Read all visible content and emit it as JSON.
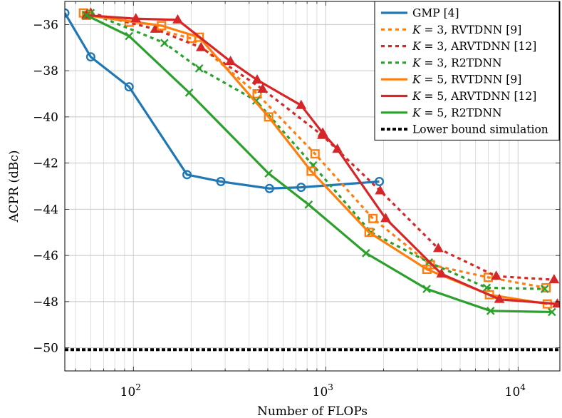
{
  "chart_data": {
    "type": "line",
    "title": "",
    "xlabel": "Number of FLOPs",
    "ylabel": "ACPR (dBc)",
    "xscale": "log",
    "xlim": [
      44,
      16500
    ],
    "ylim": [
      -51,
      -35
    ],
    "xticks": [
      {
        "value": 100,
        "base": "10",
        "exp": "2"
      },
      {
        "value": 1000,
        "base": "10",
        "exp": "3"
      },
      {
        "value": 10000,
        "base": "10",
        "exp": "4"
      }
    ],
    "yticks": [
      {
        "value": -36,
        "label": "−36"
      },
      {
        "value": -38,
        "label": "−38"
      },
      {
        "value": -40,
        "label": "−40"
      },
      {
        "value": -42,
        "label": "−42"
      },
      {
        "value": -44,
        "label": "−44"
      },
      {
        "value": -46,
        "label": "−46"
      },
      {
        "value": -48,
        "label": "−48"
      },
      {
        "value": -50,
        "label": "−50"
      }
    ],
    "grid": true,
    "legend_position": "top-right",
    "series": [
      {
        "name": "GMP [4]",
        "legend_plain": "GMP [4]",
        "color": "#1f77b4",
        "dash": "solid",
        "marker": "circle",
        "x": [
          44,
          60,
          95,
          190,
          285,
          510,
          745,
          1900
        ],
        "y": [
          -35.5,
          -37.4,
          -38.7,
          -42.5,
          -42.8,
          -43.1,
          -43.05,
          -42.8
        ]
      },
      {
        "name": "K = 3, RVTDNN [9]",
        "legend_k": "3",
        "legend_rest": "RVTDNN [9]",
        "color": "#ff7f0e",
        "dash": "dotted",
        "marker": "square",
        "x": [
          55,
          95,
          200,
          440,
          880,
          1760,
          3500,
          7000,
          14000
        ],
        "y": [
          -35.5,
          -35.9,
          -36.6,
          -39.0,
          -41.6,
          -44.4,
          -46.4,
          -46.95,
          -47.4
        ]
      },
      {
        "name": "K = 3, ARVTDNN [12]",
        "legend_k": "3",
        "legend_rest": "ARVTDNN [12]",
        "color": "#d62728",
        "dash": "dotted",
        "marker": "triangle",
        "x": [
          60,
          130,
          225,
          470,
          960,
          1920,
          3850,
          7700,
          15400
        ],
        "y": [
          -35.5,
          -36.2,
          -37.0,
          -38.8,
          -40.8,
          -43.2,
          -45.7,
          -46.9,
          -47.05
        ]
      },
      {
        "name": "K = 3, R2TDNN",
        "legend_k": "3",
        "legend_rest": "R2TDNN",
        "color": "#2ca02c",
        "dash": "dotted",
        "marker": "x",
        "x": [
          60,
          145,
          220,
          435,
          860,
          1720,
          3440,
          6880,
          13760
        ],
        "y": [
          -35.5,
          -36.8,
          -37.9,
          -39.3,
          -42.1,
          -45.0,
          -46.3,
          -47.4,
          -47.45
        ]
      },
      {
        "name": "K = 5, RVTDNN [9]",
        "legend_k": "5",
        "legend_rest": "RVTDNN [9]",
        "color": "#ff7f0e",
        "dash": "solid",
        "marker": "square",
        "x": [
          57,
          140,
          220,
          505,
          840,
          1680,
          3360,
          7100,
          14200
        ],
        "y": [
          -35.6,
          -36.05,
          -36.55,
          -40.0,
          -42.35,
          -45.0,
          -46.6,
          -47.7,
          -48.1
        ]
      },
      {
        "name": "K = 5, ARVTDNN [12]",
        "legend_k": "5",
        "legend_rest": "ARVTDNN [12]",
        "color": "#d62728",
        "dash": "solid",
        "marker": "triangle",
        "x": [
          57,
          103,
          170,
          320,
          440,
          745,
          965,
          1150,
          2050,
          4000,
          8000,
          16000
        ],
        "y": [
          -35.6,
          -35.75,
          -35.8,
          -37.6,
          -38.4,
          -39.5,
          -40.7,
          -41.4,
          -44.4,
          -46.8,
          -47.9,
          -48.1
        ]
      },
      {
        "name": "K = 5, R2TDNN",
        "legend_k": "5",
        "legend_rest": "R2TDNN",
        "color": "#2ca02c",
        "dash": "solid",
        "marker": "x",
        "x": [
          57,
          95,
          195,
          505,
          815,
          1620,
          3350,
          7200,
          15000
        ],
        "y": [
          -35.6,
          -36.5,
          -38.95,
          -42.45,
          -43.8,
          -45.9,
          -47.45,
          -48.4,
          -48.45
        ]
      },
      {
        "name": "Lower bound simulation",
        "legend_plain": "Lower bound simulation",
        "color": "#000000",
        "dash": "dense",
        "marker": "none",
        "x": [
          44,
          16500
        ],
        "y": [
          -50.08,
          -50.08
        ]
      }
    ]
  }
}
